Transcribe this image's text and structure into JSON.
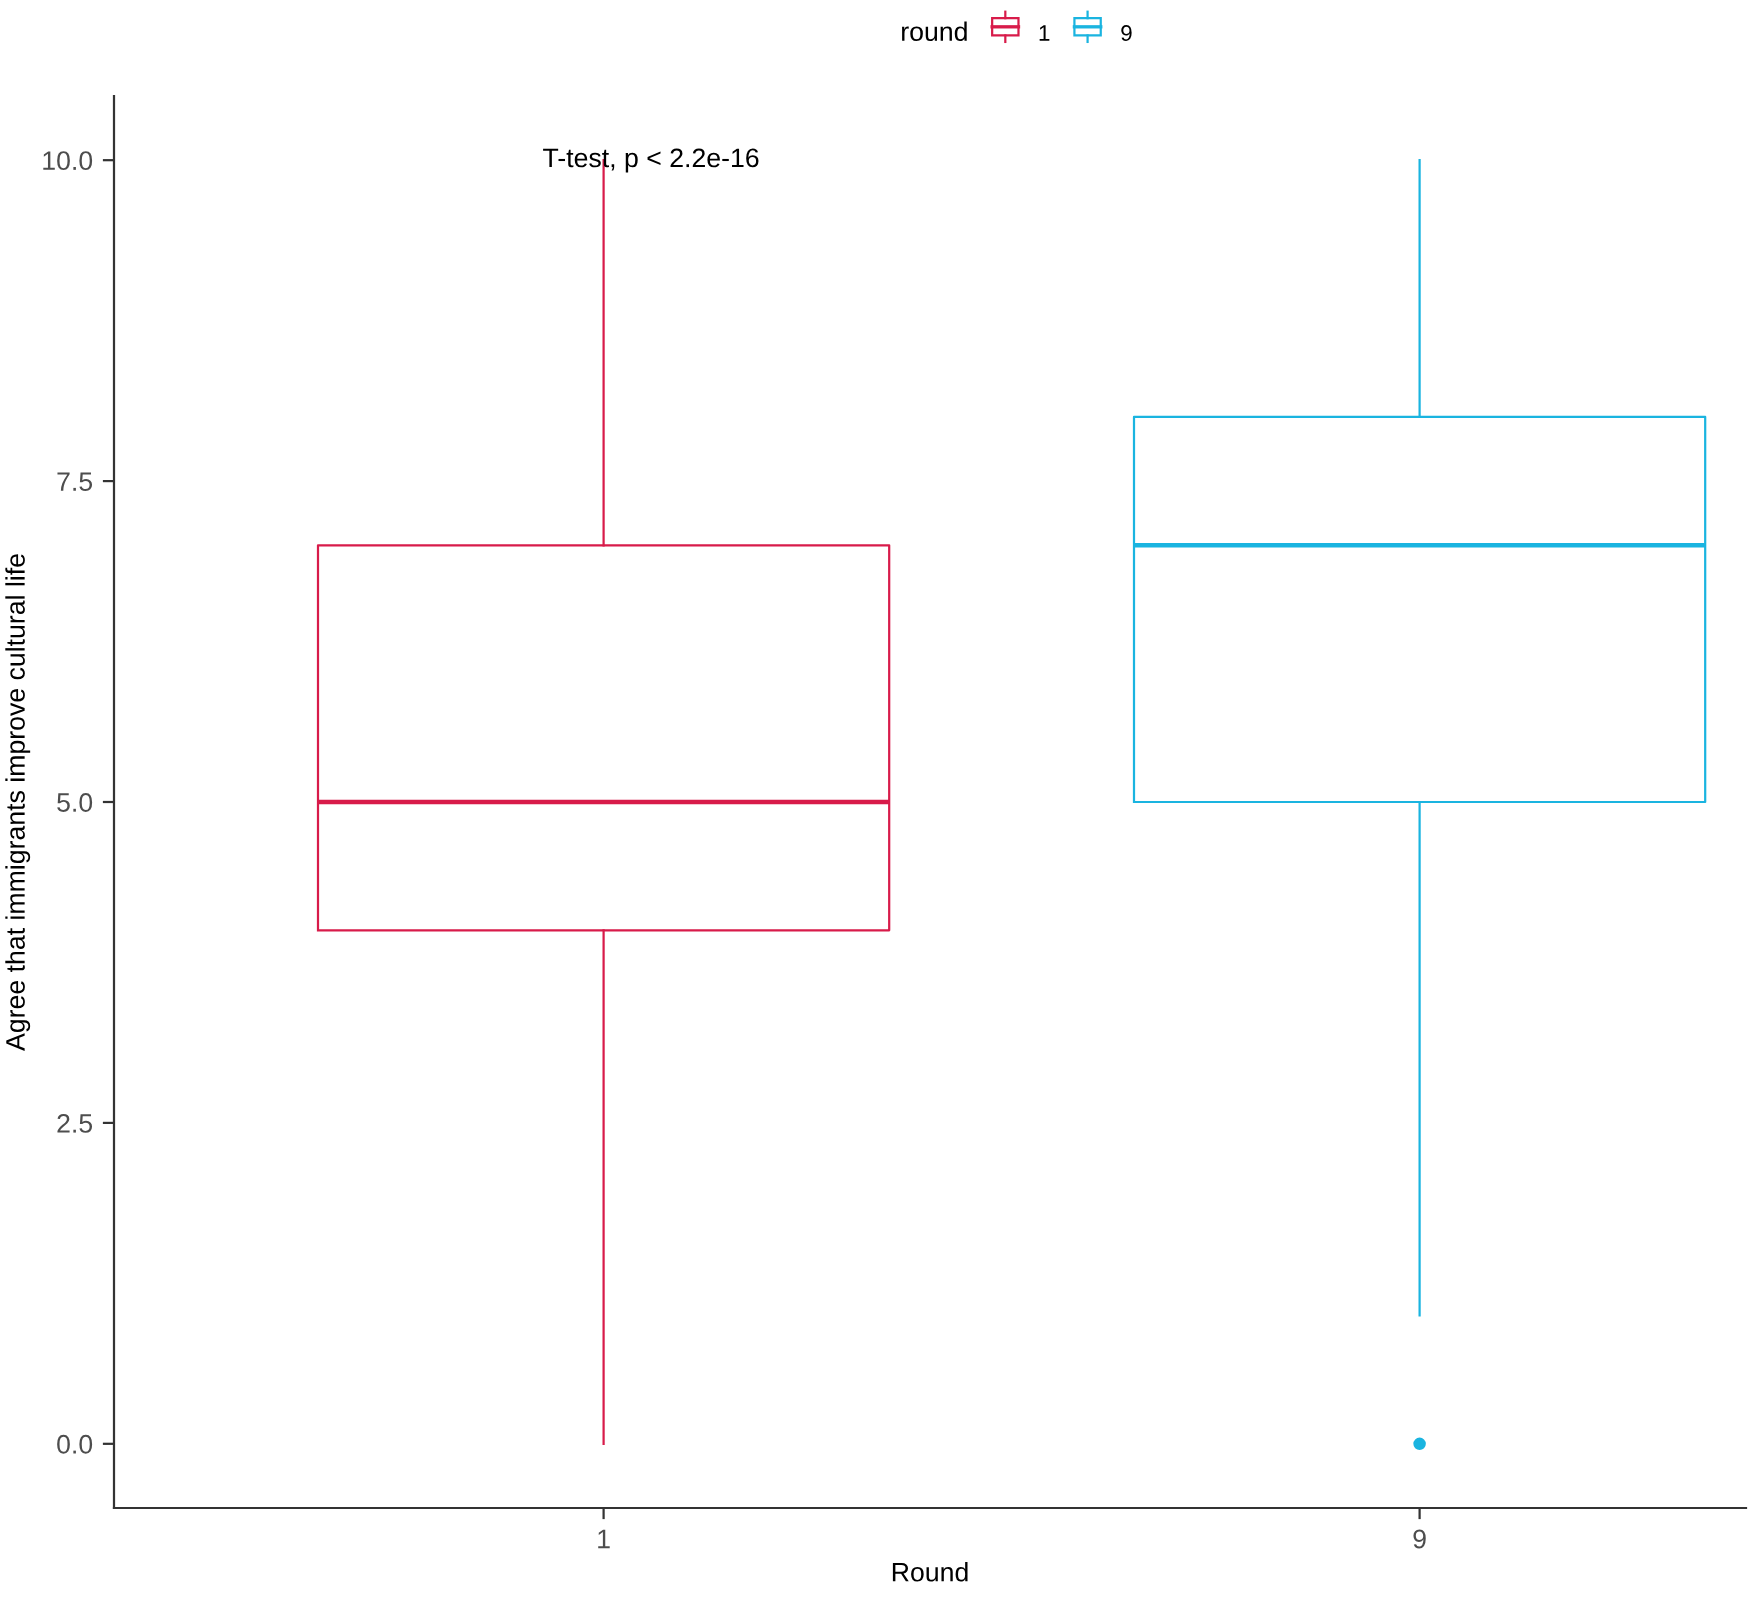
{
  "chart_data": {
    "type": "box",
    "categories": [
      "1",
      "9"
    ],
    "xlabel": "Round",
    "ylabel": "Agree that immigrants improve cultural life",
    "legend_title": "round",
    "legend": "top",
    "grid": false,
    "ylim": [
      -0.5,
      10.5
    ],
    "yticks": [
      {
        "value": 0,
        "label": "0.0"
      },
      {
        "value": 2.5,
        "label": "2.5"
      },
      {
        "value": 5,
        "label": "5.0"
      },
      {
        "value": 7.5,
        "label": "7.5"
      },
      {
        "value": 10,
        "label": "10.0"
      }
    ],
    "series": [
      {
        "name": "1",
        "color": "#d81b4a",
        "boxes": [
          {
            "low": 0,
            "q1": 4,
            "median": 5,
            "q3": 7,
            "high": 10
          },
          null
        ]
      },
      {
        "name": "9",
        "color": "#1ab4e0",
        "boxes": [
          null,
          {
            "low": 1,
            "q1": 5,
            "median": 7,
            "q3": 8,
            "high": 10,
            "outliers": [
              0
            ]
          }
        ]
      }
    ],
    "annotations": [
      {
        "text": "T-test, p < 2.2e-16",
        "x": "1",
        "y": 10
      }
    ]
  }
}
